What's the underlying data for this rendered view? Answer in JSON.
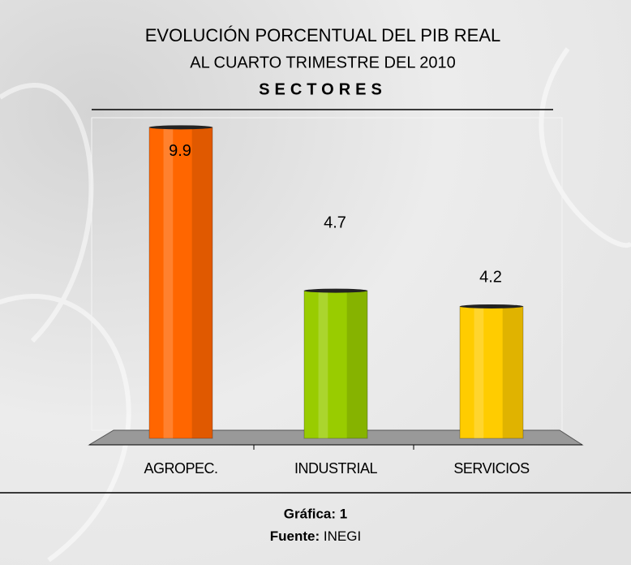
{
  "chart_data": {
    "type": "bar",
    "title": "EVOLUCIÓN PORCENTUAL DEL PIB REAL",
    "subtitle": "AL CUARTO TRIMESTRE DEL 2010",
    "heading": "SECTORES",
    "categories": [
      "AGROPEC.",
      "INDUSTRIAL",
      "SERVICIOS"
    ],
    "values": [
      9.9,
      4.7,
      4.2
    ],
    "colors": [
      "#ff6600",
      "#99cc00",
      "#ffcc00"
    ],
    "caption": "Gráfica: 1",
    "source_label": "Fuente:",
    "source": "INEGI"
  }
}
